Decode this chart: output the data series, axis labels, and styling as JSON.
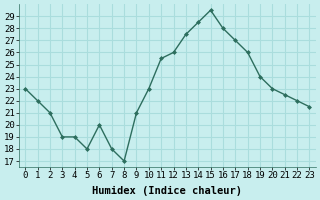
{
  "x": [
    0,
    1,
    2,
    3,
    4,
    5,
    6,
    7,
    8,
    9,
    10,
    11,
    12,
    13,
    14,
    15,
    16,
    17,
    18,
    19,
    20,
    21,
    22,
    23
  ],
  "y": [
    23,
    22,
    21,
    19,
    19,
    18,
    20,
    18,
    17,
    21,
    23,
    25.5,
    26,
    27.5,
    28.5,
    29.5,
    28,
    27,
    26,
    24,
    23,
    22.5,
    22,
    21.5
  ],
  "line_color": "#2d6e5e",
  "marker": "D",
  "marker_size": 2.0,
  "bg_color": "#c8eeee",
  "grid_color": "#aadddd",
  "xlabel": "Humidex (Indice chaleur)",
  "ylim": [
    16.5,
    30.0
  ],
  "yticks": [
    17,
    18,
    19,
    20,
    21,
    22,
    23,
    24,
    25,
    26,
    27,
    28,
    29
  ],
  "xticks": [
    0,
    1,
    2,
    3,
    4,
    5,
    6,
    7,
    8,
    9,
    10,
    11,
    12,
    13,
    14,
    15,
    16,
    17,
    18,
    19,
    20,
    21,
    22,
    23
  ],
  "xlabel_fontsize": 7.5,
  "tick_fontsize": 6.5,
  "linewidth": 1.0
}
